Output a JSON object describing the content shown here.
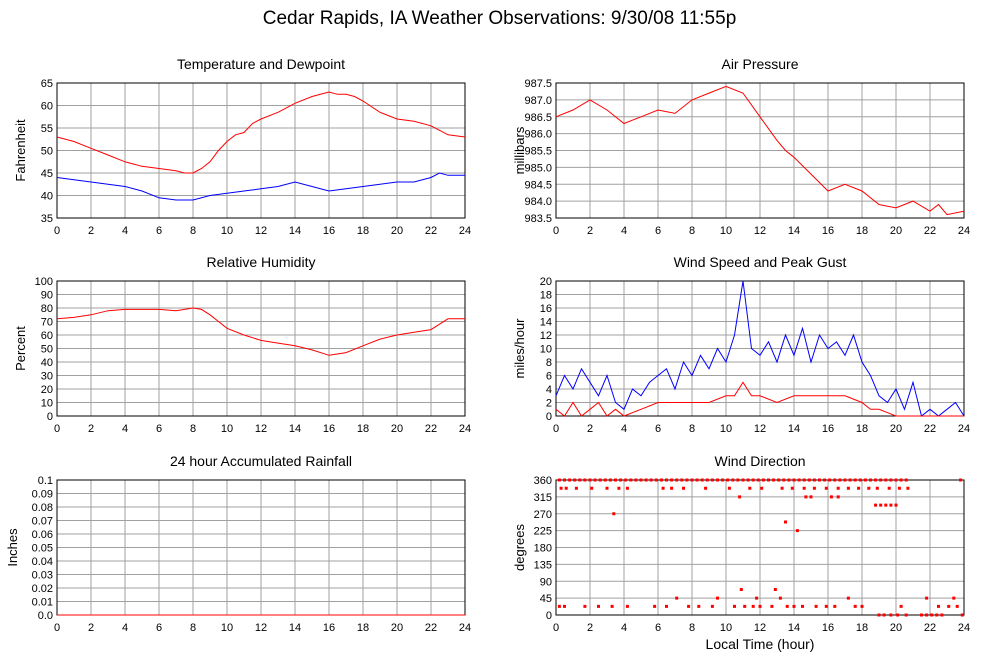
{
  "page": {
    "title": "Cedar Rapids, IA Weather Observations: 9/30/08 11:55p",
    "xlabel_bottom": "Local Time (hour)"
  },
  "colors": {
    "grid": "#a0a0a0",
    "axis": "#000000",
    "red": "#ff0000",
    "blue": "#0000ff"
  },
  "chart_data": [
    {
      "id": "temp",
      "type": "line",
      "title": "Temperature and Dewpoint",
      "xlabel": "",
      "ylabel": "Fahrenheit",
      "xlim": [
        0,
        24
      ],
      "ylim": [
        35,
        65
      ],
      "xticks": [
        0,
        2,
        4,
        6,
        8,
        10,
        12,
        14,
        16,
        18,
        20,
        22,
        24
      ],
      "yticks": [
        35,
        40,
        45,
        50,
        55,
        60,
        65
      ],
      "grid": true,
      "series": [
        {
          "color": "#ff0000",
          "x": [
            0,
            1,
            2,
            3,
            4,
            5,
            6,
            7,
            7.5,
            8,
            8.5,
            9,
            9.5,
            10,
            10.5,
            11,
            11.5,
            12,
            13,
            14,
            15,
            16,
            16.5,
            17,
            17.5,
            18,
            19,
            20,
            21,
            22,
            23,
            24
          ],
          "y": [
            53,
            52,
            50.5,
            49,
            47.5,
            46.5,
            46,
            45.5,
            45,
            45,
            46,
            47.5,
            50,
            52,
            53.5,
            54,
            56,
            57,
            58.5,
            60.5,
            62,
            63,
            62.5,
            62.5,
            62,
            61,
            58.5,
            57,
            56.5,
            55.5,
            53.5,
            53
          ]
        },
        {
          "color": "#0000ff",
          "x": [
            0,
            1,
            2,
            3,
            4,
            5,
            6,
            7,
            8,
            9,
            10,
            11,
            12,
            13,
            14,
            15,
            16,
            17,
            18,
            19,
            20,
            21,
            22,
            22.5,
            23,
            24
          ],
          "y": [
            44,
            43.5,
            43,
            42.5,
            42,
            41,
            39.5,
            39,
            39,
            40,
            40.5,
            41,
            41.5,
            42,
            43,
            42,
            41,
            41.5,
            42,
            42.5,
            43,
            43,
            44,
            45,
            44.5,
            44.5
          ]
        }
      ]
    },
    {
      "id": "pres",
      "type": "line",
      "title": "Air Pressure",
      "xlabel": "",
      "ylabel": "millibars",
      "xlim": [
        0,
        24
      ],
      "ylim": [
        983.5,
        987.5
      ],
      "xticks": [
        0,
        2,
        4,
        6,
        8,
        10,
        12,
        14,
        16,
        18,
        20,
        22,
        24
      ],
      "yticks": [
        983.5,
        984.0,
        984.5,
        985.0,
        985.5,
        986.0,
        986.5,
        987.0,
        987.5
      ],
      "ytick_labels": [
        "983.5",
        "984.0",
        "984.5",
        "985.0",
        "985.5",
        "986.0",
        "986.5",
        "987.0",
        "987.5"
      ],
      "grid": true,
      "series": [
        {
          "color": "#ff0000",
          "x": [
            0,
            1,
            2,
            3,
            4,
            5,
            6,
            7,
            8,
            9,
            10,
            11,
            12,
            13,
            13.5,
            14,
            15,
            16,
            17,
            18,
            19,
            20,
            21,
            22,
            22.5,
            23,
            24
          ],
          "y": [
            986.5,
            986.7,
            987.0,
            986.7,
            986.3,
            986.5,
            986.7,
            986.6,
            987.0,
            987.2,
            987.4,
            987.2,
            986.5,
            985.8,
            985.5,
            985.3,
            984.8,
            984.3,
            984.5,
            984.3,
            983.9,
            983.8,
            984.0,
            983.7,
            983.9,
            983.6,
            983.7
          ]
        }
      ]
    },
    {
      "id": "rh",
      "type": "line",
      "title": "Relative Humidity",
      "xlabel": "",
      "ylabel": "Percent",
      "xlim": [
        0,
        24
      ],
      "ylim": [
        0,
        100
      ],
      "xticks": [
        0,
        2,
        4,
        6,
        8,
        10,
        12,
        14,
        16,
        18,
        20,
        22,
        24
      ],
      "yticks": [
        0,
        10,
        20,
        30,
        40,
        50,
        60,
        70,
        80,
        90,
        100
      ],
      "grid": true,
      "series": [
        {
          "color": "#ff0000",
          "x": [
            0,
            1,
            2,
            3,
            4,
            5,
            6,
            7,
            7.5,
            8,
            8.5,
            9,
            9.5,
            10,
            11,
            12,
            13,
            14,
            15,
            16,
            17,
            18,
            19,
            20,
            21,
            22,
            22.5,
            23,
            24
          ],
          "y": [
            72,
            73,
            75,
            78,
            79,
            79,
            79,
            78,
            79,
            80,
            79,
            75,
            70,
            65,
            60,
            56,
            54,
            52,
            49,
            45,
            47,
            52,
            57,
            60,
            62,
            64,
            68,
            72,
            72
          ]
        }
      ]
    },
    {
      "id": "wind",
      "type": "line",
      "title": "Wind Speed and Peak Gust",
      "xlabel": "",
      "ylabel": "miles/hour",
      "xlim": [
        0,
        24
      ],
      "ylim": [
        0,
        20
      ],
      "xticks": [
        0,
        2,
        4,
        6,
        8,
        10,
        12,
        14,
        16,
        18,
        20,
        22,
        24
      ],
      "yticks": [
        0,
        2,
        4,
        6,
        8,
        10,
        12,
        14,
        16,
        18,
        20
      ],
      "grid": true,
      "series": [
        {
          "color": "#0000ff",
          "x": [
            0,
            0.5,
            1,
            1.5,
            2,
            2.5,
            3,
            3.5,
            4,
            4.5,
            5,
            5.5,
            6,
            6.5,
            7,
            7.5,
            8,
            8.5,
            9,
            9.5,
            10,
            10.5,
            11,
            11.5,
            12,
            12.5,
            13,
            13.5,
            14,
            14.5,
            15,
            15.5,
            16,
            16.5,
            17,
            17.5,
            18,
            18.5,
            19,
            19.5,
            20,
            20.5,
            21,
            21.5,
            22,
            22.5,
            23,
            23.5,
            24
          ],
          "y": [
            3,
            6,
            4,
            7,
            5,
            3,
            6,
            2,
            1,
            4,
            3,
            5,
            6,
            7,
            4,
            8,
            6,
            9,
            7,
            10,
            8,
            12,
            20,
            10,
            9,
            11,
            8,
            12,
            9,
            13,
            8,
            12,
            10,
            11,
            9,
            12,
            8,
            6,
            3,
            2,
            4,
            1,
            5,
            0,
            1,
            0,
            1,
            2,
            0
          ]
        },
        {
          "color": "#ff0000",
          "x": [
            0,
            0.5,
            1,
            1.5,
            2,
            2.5,
            3,
            3.5,
            4,
            5,
            6,
            7,
            8,
            9,
            10,
            10.5,
            11,
            11.5,
            12,
            13,
            14,
            15,
            16,
            17,
            18,
            18.5,
            19,
            20,
            21,
            22,
            23,
            24
          ],
          "y": [
            1,
            0,
            2,
            0,
            1,
            2,
            0,
            1,
            0,
            1,
            2,
            2,
            2,
            2,
            3,
            3,
            5,
            3,
            3,
            2,
            3,
            3,
            3,
            3,
            2,
            1,
            1,
            0,
            0,
            0,
            0,
            0
          ]
        }
      ]
    },
    {
      "id": "rain",
      "type": "line",
      "title": "24 hour Accumulated Rainfall",
      "xlabel": "",
      "ylabel": "Inches",
      "xlim": [
        0,
        24
      ],
      "ylim": [
        0,
        0.1
      ],
      "xticks": [
        0,
        2,
        4,
        6,
        8,
        10,
        12,
        14,
        16,
        18,
        20,
        22,
        24
      ],
      "yticks": [
        0,
        0.01,
        0.02,
        0.03,
        0.04,
        0.05,
        0.06,
        0.07,
        0.08,
        0.09,
        0.1
      ],
      "ytick_labels": [
        "0.0",
        "0.01",
        "0.02",
        "0.03",
        "0.04",
        "0.05",
        "0.06",
        "0.07",
        "0.08",
        "0.09",
        "0.1"
      ],
      "grid": true,
      "series": [
        {
          "color": "#ff0000",
          "x": [
            0,
            24
          ],
          "y": [
            0,
            0
          ]
        }
      ]
    },
    {
      "id": "dir",
      "type": "scatter",
      "title": "Wind Direction",
      "xlabel": "Local Time (hour)",
      "ylabel": "degrees",
      "xlim": [
        0,
        24
      ],
      "ylim": [
        0,
        360
      ],
      "xticks": [
        0,
        2,
        4,
        6,
        8,
        10,
        12,
        14,
        16,
        18,
        20,
        22,
        24
      ],
      "yticks": [
        0,
        45,
        90,
        135,
        180,
        225,
        270,
        315,
        360
      ],
      "grid": true,
      "series": [
        {
          "color": "#ff0000",
          "x": [
            0.2,
            0.5,
            0.8,
            1.1,
            1.4,
            1.7,
            2,
            2.3,
            2.6,
            2.9,
            3.2,
            3.5,
            3.8,
            4.1,
            4.4,
            4.7,
            5,
            5.3,
            5.6,
            5.9,
            6.2,
            6.5,
            6.8,
            7.1,
            7.4,
            7.7,
            8,
            8.3,
            8.6,
            8.9,
            9.2,
            9.5,
            9.8,
            10.1,
            10.4,
            10.7,
            11,
            11.3,
            11.6,
            11.9,
            12.2,
            12.5,
            12.8,
            13.1,
            13.4,
            13.7,
            14,
            14.3,
            14.6,
            14.9,
            15.2,
            15.5,
            15.8,
            16.1,
            16.4,
            16.7,
            17,
            17.3,
            17.6,
            17.9,
            18.2,
            18.5,
            18.8,
            19.1,
            19.4,
            19.7,
            20,
            20.3,
            20.6,
            23.8,
            0.3,
            0.6,
            1.2,
            2.1,
            3.0,
            3.7,
            4.2,
            6.3,
            6.8,
            7.5,
            8.8,
            10.2,
            11.4,
            12.1,
            13.3,
            13.9,
            14.6,
            15.2,
            15.9,
            16.6,
            17.2,
            17.8,
            18.4,
            18.9,
            19.6,
            20.2,
            20.7,
            14.7,
            15.0,
            16.2,
            16.6,
            3.4,
            10.8,
            13.5,
            14.2,
            18.8,
            19.1,
            19.4,
            19.7,
            20.0,
            0.2,
            0.5,
            1.7,
            2.5,
            3.3,
            4.2,
            5.8,
            6.5,
            7.8,
            8.4,
            9.2,
            10.5,
            11.1,
            11.6,
            12.0,
            12.7,
            13.6,
            14.0,
            14.5,
            15.3,
            15.9,
            16.4,
            17.6,
            18.0,
            20.3,
            22.5,
            23.1,
            23.6,
            10.9,
            11.8,
            12.9,
            9.5,
            13.2,
            7.1,
            17.2,
            21.8,
            23.4,
            19.0,
            19.3,
            19.7,
            20.1,
            20.6,
            21.5,
            21.8,
            22.1,
            22.4,
            22.7,
            23.9
          ],
          "y": [
            360,
            360,
            360,
            360,
            360,
            360,
            360,
            360,
            360,
            360,
            360,
            360,
            360,
            360,
            360,
            360,
            360,
            360,
            360,
            360,
            360,
            360,
            360,
            360,
            360,
            360,
            360,
            360,
            360,
            360,
            360,
            360,
            360,
            360,
            360,
            360,
            360,
            360,
            360,
            360,
            360,
            360,
            360,
            360,
            360,
            360,
            360,
            360,
            360,
            360,
            360,
            360,
            360,
            360,
            360,
            360,
            360,
            360,
            360,
            360,
            360,
            360,
            360,
            360,
            360,
            360,
            360,
            360,
            360,
            360,
            338,
            338,
            338,
            338,
            338,
            338,
            338,
            338,
            338,
            338,
            338,
            338,
            338,
            338,
            338,
            338,
            338,
            338,
            338,
            338,
            338,
            338,
            338,
            338,
            338,
            338,
            338,
            315,
            315,
            315,
            315,
            270,
            315,
            248,
            225,
            293,
            293,
            293,
            293,
            293,
            23,
            23,
            23,
            23,
            23,
            23,
            23,
            23,
            23,
            23,
            23,
            23,
            23,
            23,
            23,
            23,
            23,
            23,
            23,
            23,
            23,
            23,
            23,
            23,
            23,
            23,
            23,
            23,
            68,
            45,
            68,
            45,
            45,
            45,
            45,
            45,
            45,
            0,
            0,
            0,
            0,
            0,
            0,
            0,
            0,
            0,
            0,
            0
          ]
        }
      ]
    }
  ]
}
